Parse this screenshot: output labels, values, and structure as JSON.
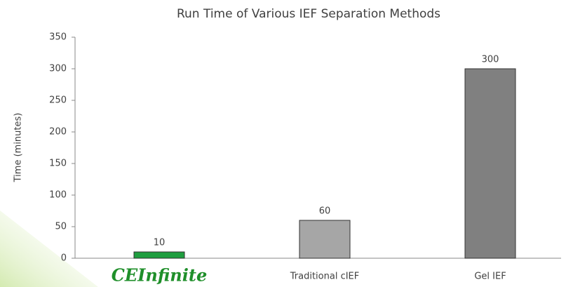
{
  "chart_data": {
    "type": "bar",
    "title": "Run Time of Various IEF Separation Methods",
    "y_label": "Time (minutes)",
    "categories": [
      "CEInfinite",
      "Traditional cIEF",
      "Gel IEF"
    ],
    "values": [
      10,
      60,
      300
    ],
    "colors": [
      "#1f9e3f",
      "#a6a6a6",
      "#808080"
    ],
    "ylim": [
      0,
      350
    ],
    "yticks": [
      0,
      50,
      100,
      150,
      200,
      250,
      300,
      350
    ],
    "grid": false
  }
}
